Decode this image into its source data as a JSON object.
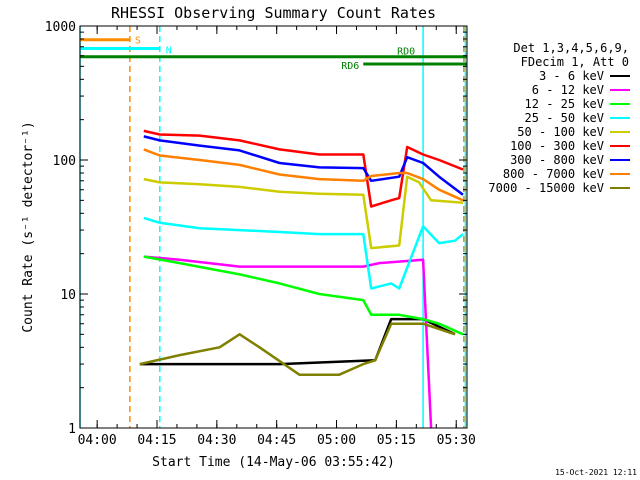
{
  "chart_data": {
    "type": "line",
    "title": "RHESSI Observing Summary Count Rates",
    "xlabel": "Start Time (14-May-06 03:55:42)",
    "ylabel": "Count Rate (s⁻¹ detector⁻¹)",
    "yscale": "log",
    "ylim": [
      1,
      1000
    ],
    "xlim_minutes": [
      0,
      97
    ],
    "x_ticks": [
      "04:00",
      "04:15",
      "04:30",
      "04:45",
      "05:00",
      "05:15",
      "05:30"
    ],
    "y_ticks": [
      "1",
      "10",
      "100",
      "1000"
    ],
    "legend_header": [
      "Det 1,3,4,5,6,9,",
      "FDecim 1, Att 0"
    ],
    "legend_position": "right",
    "footer_date": "15-Oct-2021 12:11",
    "flags": [
      {
        "label": "S",
        "color": "#ff8c00",
        "x_start": 0,
        "x_end": 12.5,
        "level": 790
      },
      {
        "label": "N",
        "color": "#00ffff",
        "x_start": 0,
        "x_end": 20,
        "level": 680
      },
      {
        "label": "RD0",
        "color": "#008000",
        "x_start": 0,
        "x_end": 97,
        "level": 590
      },
      {
        "label": "RD6",
        "color": "#008000",
        "x_start": 71,
        "x_end": 97,
        "level": 520
      }
    ],
    "vertical_markers": [
      {
        "color": "#00ffff",
        "x": 0,
        "style": "solid"
      },
      {
        "color": "#ff8c00",
        "x": 12.5,
        "style": "dashed"
      },
      {
        "color": "#00ffff",
        "x": 20,
        "style": "dashed"
      },
      {
        "color": "#00ffff",
        "x": 86,
        "style": "solid"
      },
      {
        "color": "#00ffff",
        "x": 96.6,
        "style": "solid"
      },
      {
        "color": "#ff8c00",
        "x": 96.2,
        "style": "dashed"
      }
    ],
    "series": [
      {
        "name": "3 - 6 keV",
        "color": "#000000",
        "points": [
          [
            15,
            3
          ],
          [
            30,
            3
          ],
          [
            50,
            3
          ],
          [
            74,
            3.2
          ],
          [
            78,
            6.5
          ],
          [
            86,
            6.5
          ],
          [
            94,
            5
          ]
        ]
      },
      {
        "name": "6 - 12 keV",
        "color": "#ff00ff",
        "points": [
          [
            16,
            19
          ],
          [
            25,
            18
          ],
          [
            40,
            16
          ],
          [
            55,
            16
          ],
          [
            71,
            16
          ],
          [
            75,
            17
          ],
          [
            86,
            18
          ],
          [
            88,
            1
          ]
        ]
      },
      {
        "name": "12 - 25 keV",
        "color": "#00ff00",
        "points": [
          [
            16,
            19
          ],
          [
            25,
            17
          ],
          [
            40,
            14
          ],
          [
            50,
            12
          ],
          [
            60,
            10
          ],
          [
            71,
            9
          ],
          [
            73,
            7
          ],
          [
            80,
            7
          ],
          [
            86,
            6.5
          ],
          [
            90,
            6
          ],
          [
            96,
            5
          ]
        ]
      },
      {
        "name": "25 - 50 keV",
        "color": "#00ffff",
        "points": [
          [
            16,
            37
          ],
          [
            20,
            34
          ],
          [
            30,
            31
          ],
          [
            40,
            30
          ],
          [
            50,
            29
          ],
          [
            60,
            28
          ],
          [
            71,
            28
          ],
          [
            73,
            11
          ],
          [
            78,
            12
          ],
          [
            80,
            11
          ],
          [
            86,
            32
          ],
          [
            90,
            24
          ],
          [
            94,
            25
          ],
          [
            96,
            28
          ]
        ]
      },
      {
        "name": "50 - 100 keV",
        "color": "#cccc00",
        "points": [
          [
            16,
            72
          ],
          [
            20,
            68
          ],
          [
            30,
            66
          ],
          [
            40,
            63
          ],
          [
            50,
            58
          ],
          [
            60,
            56
          ],
          [
            71,
            55
          ],
          [
            73,
            22
          ],
          [
            80,
            23
          ],
          [
            82,
            75
          ],
          [
            85,
            68
          ],
          [
            88,
            50
          ],
          [
            96,
            48
          ]
        ]
      },
      {
        "name": "100 - 300 keV",
        "color": "#ff0000",
        "points": [
          [
            16,
            165
          ],
          [
            20,
            155
          ],
          [
            30,
            152
          ],
          [
            40,
            140
          ],
          [
            50,
            120
          ],
          [
            60,
            110
          ],
          [
            71,
            110
          ],
          [
            73,
            45
          ],
          [
            78,
            50
          ],
          [
            80,
            52
          ],
          [
            82,
            125
          ],
          [
            86,
            110
          ],
          [
            90,
            100
          ],
          [
            96,
            85
          ]
        ]
      },
      {
        "name": "300 - 800 keV",
        "color": "#0000ff",
        "points": [
          [
            16,
            150
          ],
          [
            20,
            140
          ],
          [
            30,
            128
          ],
          [
            40,
            118
          ],
          [
            50,
            95
          ],
          [
            60,
            88
          ],
          [
            71,
            87
          ],
          [
            73,
            70
          ],
          [
            80,
            75
          ],
          [
            82,
            105
          ],
          [
            86,
            95
          ],
          [
            90,
            75
          ],
          [
            96,
            55
          ]
        ]
      },
      {
        "name": "800 - 7000 keV",
        "color": "#ff8000",
        "points": [
          [
            16,
            120
          ],
          [
            20,
            108
          ],
          [
            30,
            100
          ],
          [
            40,
            92
          ],
          [
            50,
            78
          ],
          [
            60,
            72
          ],
          [
            71,
            70
          ],
          [
            73,
            76
          ],
          [
            80,
            80
          ],
          [
            82,
            80
          ],
          [
            86,
            72
          ],
          [
            90,
            60
          ],
          [
            96,
            50
          ]
        ]
      },
      {
        "name": "7000 - 15000 keV",
        "color": "#808000",
        "points": [
          [
            15,
            3
          ],
          [
            25,
            3.5
          ],
          [
            35,
            4
          ],
          [
            40,
            5
          ],
          [
            45,
            4
          ],
          [
            55,
            2.5
          ],
          [
            65,
            2.5
          ],
          [
            71,
            3
          ],
          [
            74,
            3.2
          ],
          [
            78,
            6
          ],
          [
            86,
            6
          ],
          [
            94,
            5
          ]
        ]
      }
    ]
  }
}
